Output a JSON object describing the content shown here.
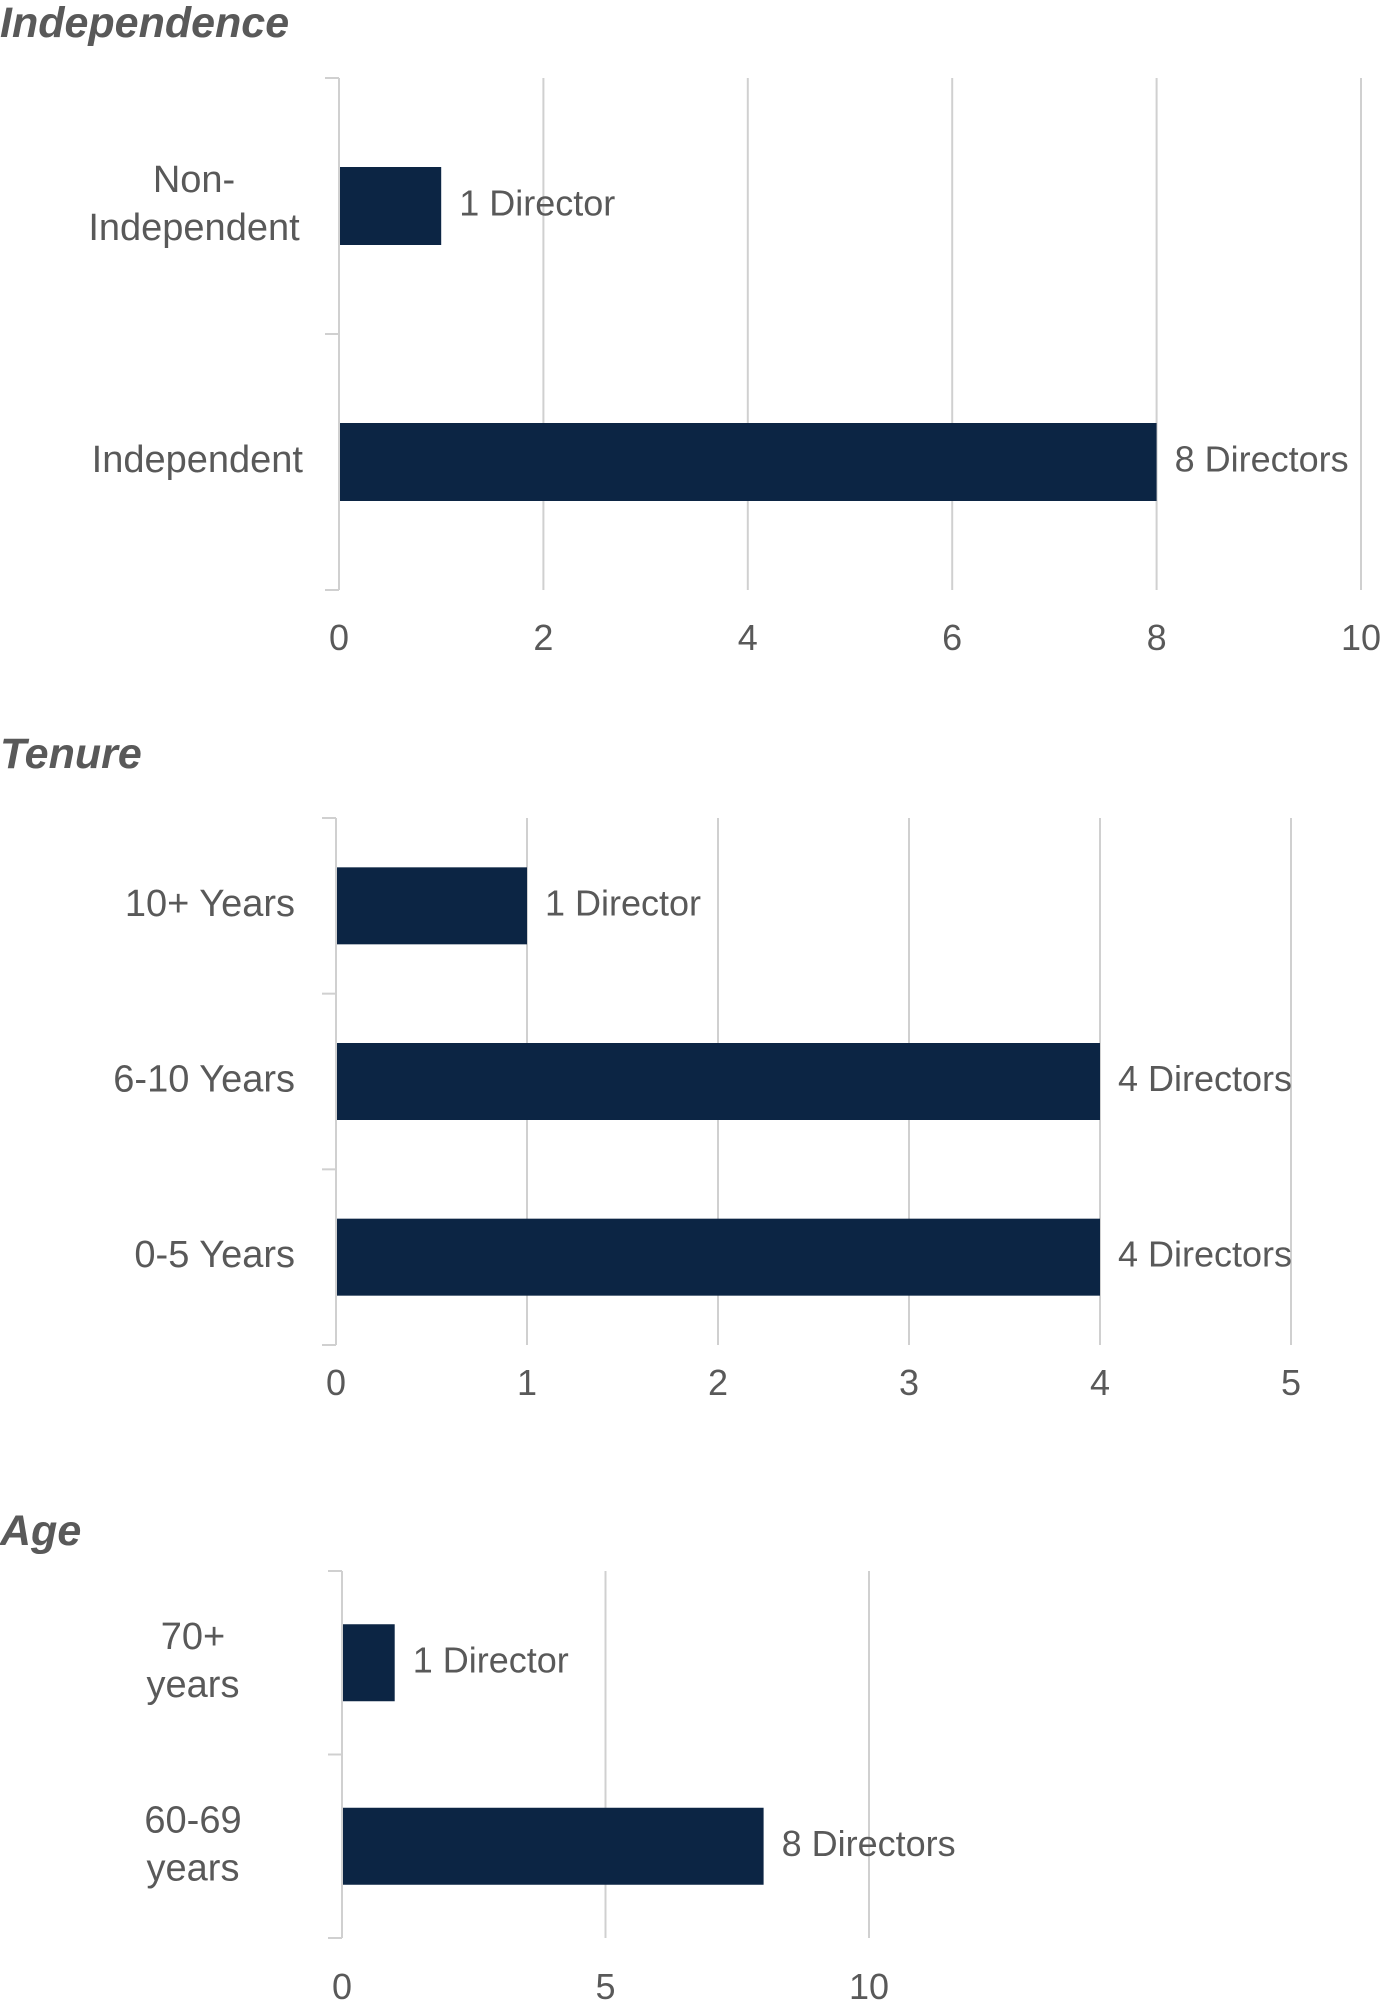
{
  "colors": {
    "bar": "#0c2544",
    "grid": "#d0d0d0",
    "text": "#595959"
  },
  "chart_data": [
    {
      "type": "bar",
      "orientation": "horizontal",
      "title": "Independence",
      "categories": [
        "Non-Independent",
        "Independent"
      ],
      "category_lines": [
        [
          "Non-",
          "Independent"
        ],
        [
          "Independent"
        ]
      ],
      "values": [
        1,
        8
      ],
      "data_labels": [
        "1 Director",
        "8 Directors"
      ],
      "xlim": [
        0,
        10
      ],
      "xticks": [
        0,
        2,
        4,
        6,
        8,
        10
      ],
      "grid": true,
      "legend": "none"
    },
    {
      "type": "bar",
      "orientation": "horizontal",
      "title": "Tenure",
      "categories": [
        "10+ Years",
        "6-10 Years",
        "0-5 Years"
      ],
      "category_lines": [
        [
          "10+ Years"
        ],
        [
          "6-10 Years"
        ],
        [
          "0-5 Years"
        ]
      ],
      "values": [
        1,
        4,
        4
      ],
      "data_labels": [
        "1 Director",
        "4 Directors",
        "4 Directors"
      ],
      "xlim": [
        0,
        5
      ],
      "xticks": [
        0,
        1,
        2,
        3,
        4,
        5
      ],
      "grid": true,
      "legend": "none"
    },
    {
      "type": "bar",
      "orientation": "horizontal",
      "title": "Age",
      "categories": [
        "70+ years",
        "60-69 years"
      ],
      "category_lines": [
        [
          "70+",
          "years"
        ],
        [
          "60-69",
          "years"
        ]
      ],
      "values": [
        1,
        8
      ],
      "data_labels": [
        "1 Director",
        "8 Directors"
      ],
      "xlim": [
        0,
        10
      ],
      "xticks": [
        0,
        5,
        10
      ],
      "grid": true,
      "legend": "none"
    }
  ]
}
